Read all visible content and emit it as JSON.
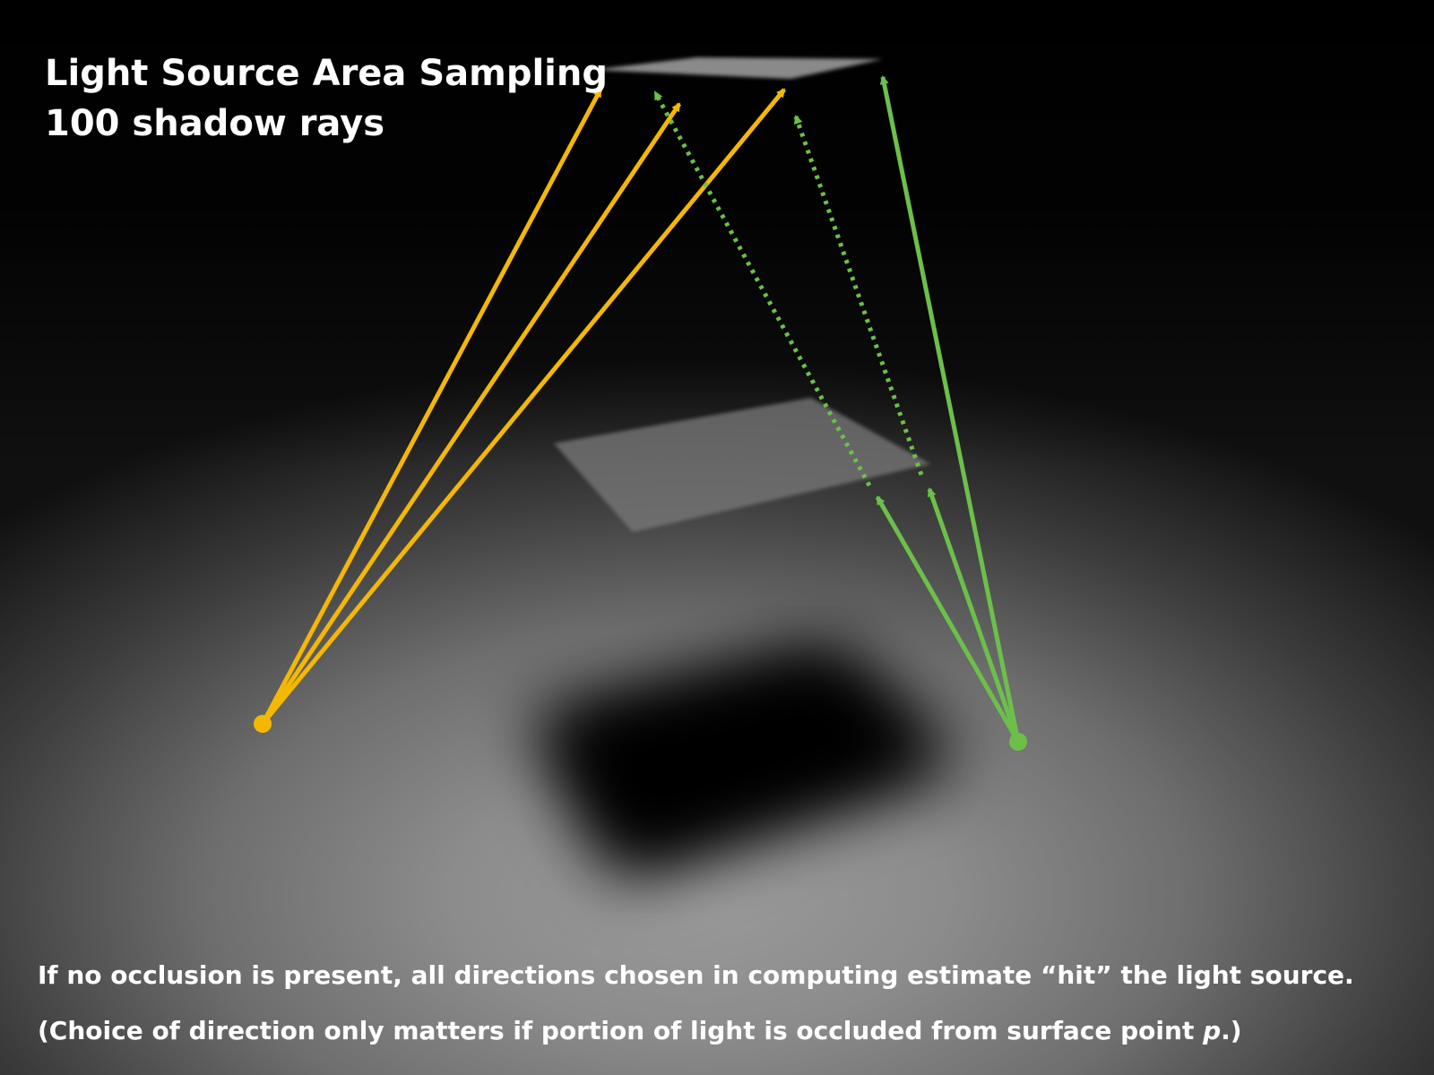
{
  "title": "Light Source Area Sampling",
  "subtitle": "100 shadow rays",
  "caption": {
    "line1": "If no occlusion is present, all directions chosen in computing estimate “hit” the light source.",
    "line2_prefix": "(Choice of direction only matters if portion of light is occluded from surface point ",
    "line2_var": "p",
    "line2_suffix": ".)"
  },
  "colors": {
    "unoccluded_ray": "#f5b800",
    "visible_ray": "#6cc04a",
    "light_panel": "#8a8a8a",
    "occluder": "#7a7a7a",
    "shadow": "#000000"
  }
}
